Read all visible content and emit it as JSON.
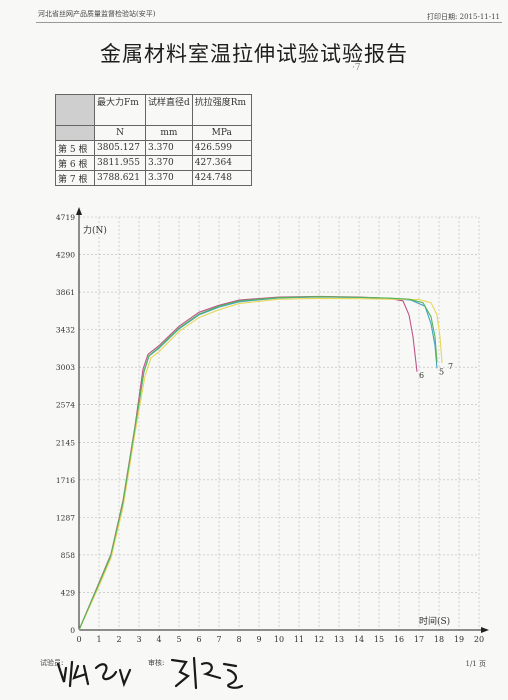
{
  "header": {
    "org": "河北省丝网产品质量监督检验站(安平)",
    "print_label": "打印日期:",
    "print_date": "2015-11-11"
  },
  "title": "金属材料室温拉伸试验试验报告",
  "corner_mark": "·7",
  "table": {
    "headers": [
      "最大力Fm",
      "试样直径d",
      "抗拉强度Rm"
    ],
    "units": [
      "N",
      "mm",
      "MPa"
    ],
    "rows": [
      {
        "label": "第 5 根",
        "fm": "3805.127",
        "d": "3.370",
        "rm": "426.599"
      },
      {
        "label": "第 6 根",
        "fm": "3811.955",
        "d": "3.370",
        "rm": "427.364"
      },
      {
        "label": "第 7 根",
        "fm": "3788.621",
        "d": "3.370",
        "rm": "424.748"
      }
    ]
  },
  "chart_data": {
    "type": "line",
    "ylabel": "力(N)",
    "xlabel": "时间(S)",
    "xlim": [
      0,
      20
    ],
    "ylim": [
      0,
      4719
    ],
    "x_ticks": [
      "0",
      "1",
      "2",
      "3",
      "4",
      "5",
      "6",
      "7",
      "8",
      "9",
      "10",
      "11",
      "12",
      "13",
      "14",
      "15",
      "16",
      "17",
      "18",
      "19",
      "20"
    ],
    "y_ticks": [
      "0",
      "429",
      "858",
      "1287",
      "1716",
      "2145",
      "2574",
      "3003",
      "3432",
      "3861",
      "4290",
      "4719"
    ],
    "grid": true,
    "series": [
      {
        "name": "5",
        "color": "#3fa4c8",
        "points": [
          [
            0,
            0
          ],
          [
            1,
            520
          ],
          [
            1.6,
            850
          ],
          [
            2.2,
            1450
          ],
          [
            2.8,
            2300
          ],
          [
            3.25,
            2950
          ],
          [
            3.5,
            3130
          ],
          [
            4,
            3220
          ],
          [
            5,
            3440
          ],
          [
            6,
            3600
          ],
          [
            7,
            3690
          ],
          [
            8,
            3750
          ],
          [
            10,
            3795
          ],
          [
            12,
            3805
          ],
          [
            14,
            3800
          ],
          [
            15.5,
            3790
          ],
          [
            16.6,
            3770
          ],
          [
            17.3,
            3700
          ],
          [
            17.6,
            3500
          ],
          [
            17.8,
            3250
          ],
          [
            17.9,
            2990
          ]
        ]
      },
      {
        "name": "6",
        "color": "#c0548a",
        "points": [
          [
            0,
            0
          ],
          [
            1,
            540
          ],
          [
            1.6,
            870
          ],
          [
            2.2,
            1480
          ],
          [
            2.8,
            2330
          ],
          [
            3.2,
            2980
          ],
          [
            3.45,
            3150
          ],
          [
            4,
            3250
          ],
          [
            5,
            3470
          ],
          [
            6,
            3630
          ],
          [
            7,
            3710
          ],
          [
            8,
            3770
          ],
          [
            10,
            3805
          ],
          [
            12,
            3812
          ],
          [
            14,
            3805
          ],
          [
            15.5,
            3790
          ],
          [
            16.2,
            3760
          ],
          [
            16.5,
            3600
          ],
          [
            16.7,
            3350
          ],
          [
            16.85,
            3050
          ],
          [
            16.9,
            2950
          ]
        ]
      },
      {
        "name": "7",
        "color": "#e6d85a",
        "points": [
          [
            0,
            0
          ],
          [
            1,
            500
          ],
          [
            1.6,
            820
          ],
          [
            2.2,
            1400
          ],
          [
            2.8,
            2250
          ],
          [
            3.3,
            2900
          ],
          [
            3.6,
            3110
          ],
          [
            4,
            3180
          ],
          [
            5,
            3410
          ],
          [
            6,
            3570
          ],
          [
            7,
            3660
          ],
          [
            8,
            3730
          ],
          [
            10,
            3780
          ],
          [
            12,
            3789
          ],
          [
            14,
            3785
          ],
          [
            15.5,
            3780
          ],
          [
            17,
            3775
          ],
          [
            17.6,
            3740
          ],
          [
            17.9,
            3600
          ],
          [
            18.05,
            3350
          ],
          [
            18.15,
            3050
          ]
        ]
      },
      {
        "name": "",
        "color": "#58b45a",
        "points": [
          [
            0,
            0
          ],
          [
            1,
            530
          ],
          [
            1.6,
            860
          ],
          [
            2.2,
            1460
          ],
          [
            2.8,
            2310
          ],
          [
            3.25,
            2960
          ],
          [
            3.5,
            3135
          ],
          [
            4,
            3230
          ],
          [
            5,
            3450
          ],
          [
            6,
            3610
          ],
          [
            7,
            3700
          ],
          [
            8,
            3760
          ],
          [
            10,
            3798
          ],
          [
            12,
            3808
          ],
          [
            14,
            3802
          ],
          [
            15.5,
            3792
          ],
          [
            16.5,
            3780
          ],
          [
            17.2,
            3740
          ],
          [
            17.6,
            3580
          ],
          [
            17.8,
            3350
          ],
          [
            17.9,
            3060
          ]
        ]
      }
    ],
    "curve_labels": [
      "6",
      "5",
      "7"
    ]
  },
  "footer": {
    "tester_label": "试验员:",
    "reviewer_label": "审核:",
    "page": "1/1 页"
  }
}
